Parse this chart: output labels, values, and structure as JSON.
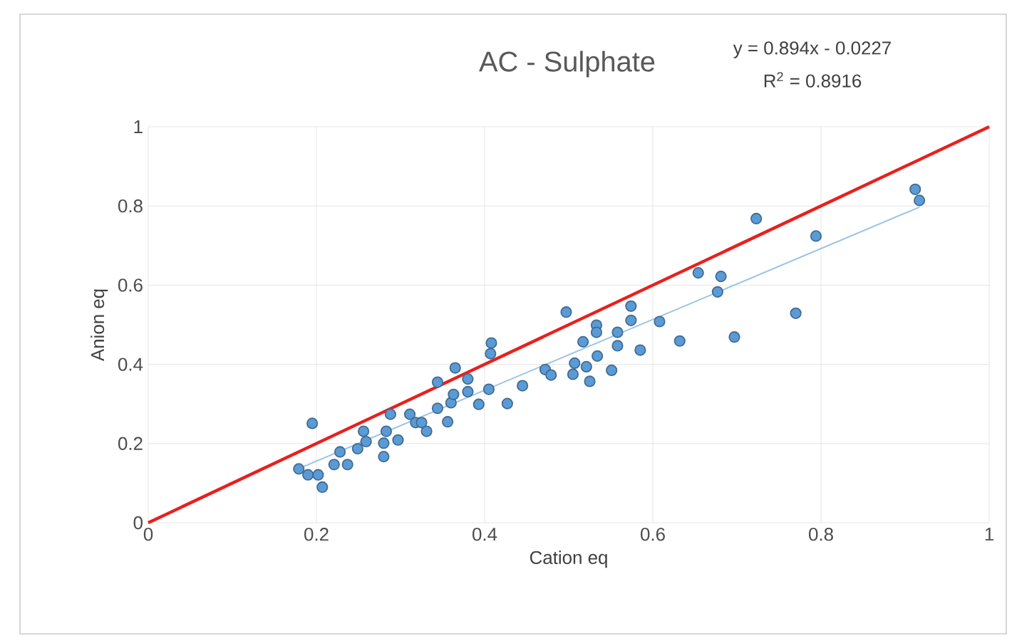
{
  "chart_data": {
    "type": "scatter",
    "title": "AC - Sulphate",
    "xlabel": "Cation eq",
    "ylabel": "Anion eq",
    "annotations": [
      "y = 0.894x - 0.0227",
      "R$^{2}$ = 0.8916"
    ],
    "xlim": [
      0,
      1
    ],
    "ylim": [
      0,
      1
    ],
    "xticks": [
      0,
      0.2,
      0.4,
      0.6,
      0.8,
      1
    ],
    "yticks": [
      0,
      0.2,
      0.4,
      0.6,
      0.8,
      1
    ],
    "grid": true,
    "series": [
      {
        "marker": "circle",
        "color": "#5b9bd5",
        "x": [
          0.195,
          0.179,
          0.19,
          0.202,
          0.207,
          0.221,
          0.228,
          0.237,
          0.249,
          0.256,
          0.259,
          0.28,
          0.28,
          0.283,
          0.288,
          0.297,
          0.311,
          0.318,
          0.325,
          0.331,
          0.344,
          0.344,
          0.356,
          0.36,
          0.363,
          0.365,
          0.38,
          0.38,
          0.393,
          0.405,
          0.408,
          0.407,
          0.427,
          0.445,
          0.472,
          0.479,
          0.497,
          0.517,
          0.533,
          0.533,
          0.534,
          0.505,
          0.507,
          0.521,
          0.525,
          0.551,
          0.558,
          0.558,
          0.574,
          0.574,
          0.585,
          0.608,
          0.632,
          0.677,
          0.697,
          0.654,
          0.681,
          0.723,
          0.794,
          0.77,
          0.917,
          0.912
        ],
        "values": [
          0.251,
          0.136,
          0.121,
          0.121,
          0.09,
          0.147,
          0.179,
          0.147,
          0.187,
          0.231,
          0.205,
          0.167,
          0.201,
          0.231,
          0.274,
          0.209,
          0.274,
          0.253,
          0.253,
          0.231,
          0.289,
          0.355,
          0.255,
          0.303,
          0.324,
          0.391,
          0.363,
          0.331,
          0.299,
          0.337,
          0.454,
          0.427,
          0.301,
          0.346,
          0.387,
          0.373,
          0.532,
          0.457,
          0.499,
          0.481,
          0.421,
          0.375,
          0.403,
          0.394,
          0.357,
          0.385,
          0.481,
          0.447,
          0.547,
          0.511,
          0.436,
          0.508,
          0.459,
          0.583,
          0.469,
          0.631,
          0.622,
          0.768,
          0.724,
          0.529,
          0.814,
          0.842
        ]
      },
      {
        "type": "line",
        "marker": "none",
        "color": "#9dc3e6",
        "x": [
          0.179,
          0.917
        ],
        "values": [
          0.137,
          0.797
        ]
      },
      {
        "type": "line",
        "marker": "none",
        "color": "#e8201e",
        "x": [
          0,
          1
        ],
        "values": [
          0,
          1
        ]
      }
    ]
  }
}
